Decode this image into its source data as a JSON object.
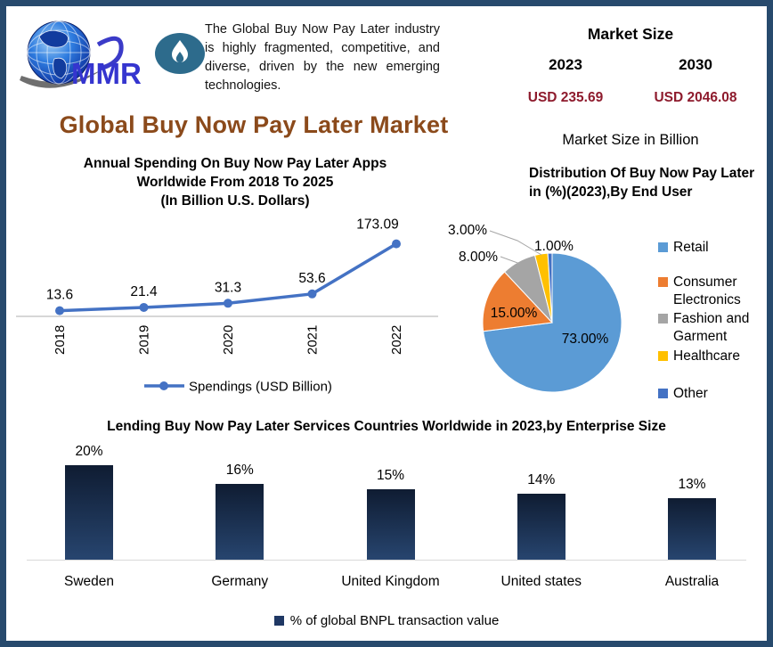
{
  "theme": {
    "border_color": "#274a6d",
    "title_color": "#8b4a1b",
    "value_color": "#8e1b2d",
    "bar_top_color": "#0f1c32",
    "bar_bottom_color": "#27456f",
    "bar_legend_color": "#1f3864",
    "line_color": "#4472c4",
    "flame_badge_color": "#2d6b8c",
    "logo_text_color": "#3535cf"
  },
  "brand": {
    "logo_text": "MMR"
  },
  "intro": {
    "text": "The Global Buy Now Pay Later industry is highly fragmented, competitive, and diverse, driven by the new emerging technologies."
  },
  "market_size": {
    "title": "Market Size",
    "year_left": "2023",
    "year_right": "2030",
    "value_left": "USD 235.69",
    "value_right": "USD 2046.08",
    "note": "Market Size in Billion"
  },
  "main_title": "Global Buy Now Pay Later Market",
  "chart_data": [
    {
      "type": "line",
      "title_lines": [
        "Annual Spending On Buy Now Pay Later Apps",
        "Worldwide From 2018 To 2025",
        "(In Billion U.S. Dollars)"
      ],
      "x": [
        "2018",
        "2019",
        "2020",
        "2021",
        "2022"
      ],
      "values": [
        13.6,
        21.4,
        31.3,
        53.6,
        173.09
      ],
      "data_labels": [
        "13.6",
        "21.4",
        "31.3",
        "53.6",
        "173.09"
      ],
      "series_name": "Spendings (USD Billion)",
      "line_color": "#4472c4",
      "ylim": [
        0,
        240
      ],
      "grid": false,
      "legend_position": "bottom"
    },
    {
      "type": "pie",
      "title_lines": [
        "Distribution Of Buy Now Pay Later",
        "in (%)(2023),By End User"
      ],
      "labels": [
        "Retail",
        "Consumer Electronics",
        "Fashion and Garment",
        "Healthcare",
        "Other"
      ],
      "values": [
        73,
        15,
        8,
        3,
        1
      ],
      "data_labels": [
        "73.00%",
        "15.00%",
        "8.00%",
        "3.00%",
        "1.00%"
      ],
      "colors": [
        "#5b9bd5",
        "#ed7d31",
        "#a5a5a5",
        "#ffc000",
        "#4472c4"
      ],
      "start_angle_deg": 0,
      "direction": "clockwise",
      "legend_position": "right"
    },
    {
      "type": "bar",
      "title": "Lending Buy Now Pay Later Services Countries Worldwide in 2023,by Enterprise Size",
      "categories": [
        "Sweden",
        "Germany",
        "United Kingdom",
        "United states",
        "Australia"
      ],
      "values": [
        20,
        16,
        15,
        14,
        13
      ],
      "data_labels": [
        "20%",
        "16%",
        "15%",
        "14%",
        "13%"
      ],
      "series_name": "% of global BNPL transaction value",
      "ylim": [
        0,
        22
      ],
      "grid": false,
      "legend_position": "bottom"
    }
  ]
}
